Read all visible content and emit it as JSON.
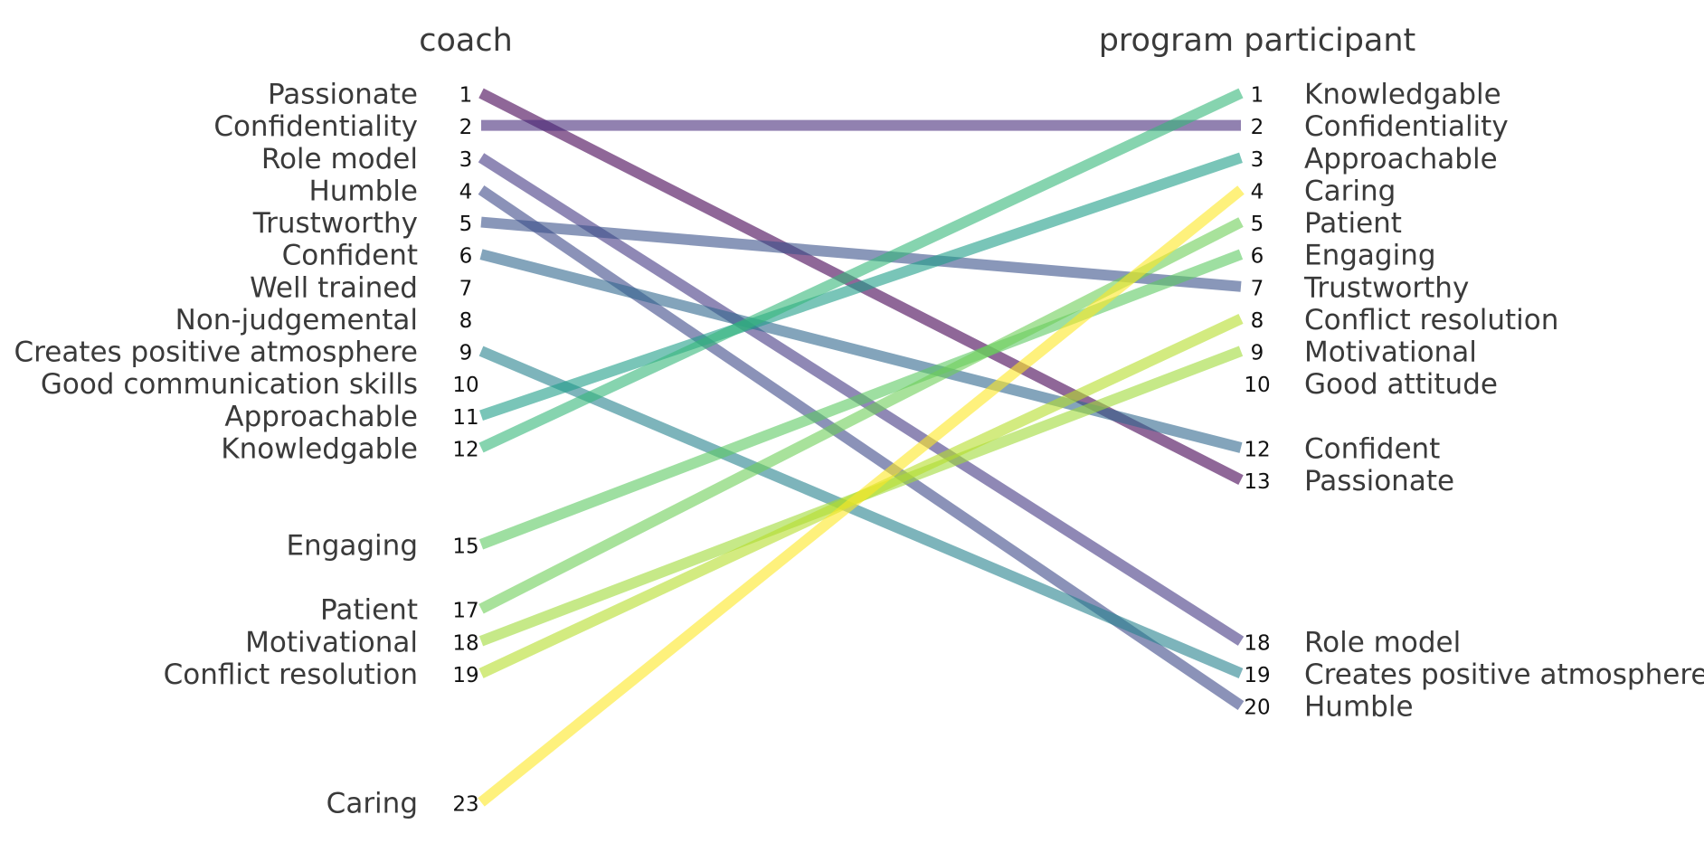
{
  "chart_data": {
    "type": "slope",
    "left": {
      "title": "coach",
      "items": [
        {
          "label": "Passionate",
          "rank": 1,
          "color": "#440154"
        },
        {
          "label": "Confidentiality",
          "rank": 2,
          "color": "#472d7b"
        },
        {
          "label": "Role model",
          "rank": 3,
          "color": "#443983"
        },
        {
          "label": "Humble",
          "rank": 4,
          "color": "#3e4a89"
        },
        {
          "label": "Trustworthy",
          "rank": 5,
          "color": "#3b528b"
        },
        {
          "label": "Confident",
          "rank": 6,
          "color": "#31688e"
        },
        {
          "label": "Well trained",
          "rank": 7
        },
        {
          "label": "Non-judgemental",
          "rank": 8
        },
        {
          "label": "Creates positive atmosphere",
          "rank": 9,
          "color": "#26828e"
        },
        {
          "label": "Good communication skills",
          "rank": 10
        },
        {
          "label": "Approachable",
          "rank": 11,
          "color": "#1f9e89"
        },
        {
          "label": "Knowledgable",
          "rank": 12,
          "color": "#35b779"
        },
        {
          "label": "Engaging",
          "rank": 15,
          "color": "#5ec962"
        },
        {
          "label": "Patient",
          "rank": 17,
          "color": "#6ece58"
        },
        {
          "label": "Motivational",
          "rank": 18,
          "color": "#a0da39"
        },
        {
          "label": "Conflict resolution",
          "rank": 19,
          "color": "#b5de2b"
        },
        {
          "label": "Caring",
          "rank": 23,
          "color": "#fde725"
        }
      ]
    },
    "right": {
      "title": "program participant",
      "items": [
        {
          "label": "Knowledgable",
          "rank": 1
        },
        {
          "label": "Confidentiality",
          "rank": 2
        },
        {
          "label": "Approachable",
          "rank": 3
        },
        {
          "label": "Caring",
          "rank": 4
        },
        {
          "label": "Patient",
          "rank": 5
        },
        {
          "label": "Engaging",
          "rank": 6
        },
        {
          "label": "Trustworthy",
          "rank": 7
        },
        {
          "label": "Conflict resolution",
          "rank": 8
        },
        {
          "label": "Motivational",
          "rank": 9
        },
        {
          "label": "Good attitude",
          "rank": 10
        },
        {
          "label": "Confident",
          "rank": 12
        },
        {
          "label": "Passionate",
          "rank": 13
        },
        {
          "label": "Role model",
          "rank": 18
        },
        {
          "label": "Creates positive atmosphere",
          "rank": 19
        },
        {
          "label": "Humble",
          "rank": 20
        }
      ]
    }
  }
}
